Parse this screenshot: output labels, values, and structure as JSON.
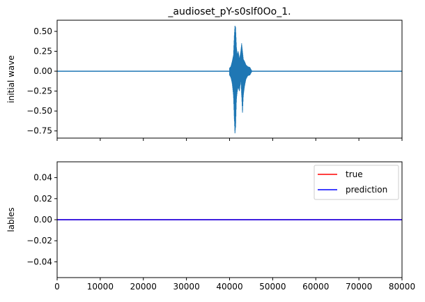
{
  "chart_data": [
    {
      "type": "line",
      "title": "_audioset_pY-s0slf0Oo_1.",
      "xlabel": "",
      "ylabel": "initial wave",
      "xlim": [
        0,
        80000
      ],
      "ylim": [
        -0.84,
        0.64
      ],
      "xticks": [
        0,
        10000,
        20000,
        30000,
        40000,
        50000,
        60000,
        70000,
        80000
      ],
      "xtick_labels_visible": false,
      "yticks": [
        -0.75,
        -0.5,
        -0.25,
        0.0,
        0.25,
        0.5
      ],
      "ytick_labels": [
        "−0.75",
        "−0.50",
        "−0.25",
        "0.00",
        "0.25",
        "0.50"
      ],
      "grid": false,
      "series": [
        {
          "color": "#1f77b4",
          "baseline": 0.0,
          "envelope": [
            [
              40000,
              0.04,
              -0.05
            ],
            [
              40300,
              0.06,
              -0.08
            ],
            [
              40600,
              0.12,
              -0.15
            ],
            [
              40900,
              0.2,
              -0.3
            ],
            [
              41100,
              0.45,
              -0.6
            ],
            [
              41250,
              0.57,
              -0.78
            ],
            [
              41400,
              0.55,
              -0.7
            ],
            [
              41600,
              0.3,
              -0.35
            ],
            [
              41800,
              0.2,
              -0.25
            ],
            [
              42000,
              0.25,
              -0.2
            ],
            [
              42300,
              0.15,
              -0.25
            ],
            [
              42600,
              0.25,
              -0.1
            ],
            [
              42800,
              0.35,
              -0.3
            ],
            [
              43000,
              0.25,
              -0.52
            ],
            [
              43200,
              0.15,
              -0.3
            ],
            [
              43500,
              0.12,
              -0.18
            ],
            [
              43800,
              0.08,
              -0.1
            ],
            [
              44200,
              0.06,
              -0.06
            ],
            [
              44700,
              0.05,
              -0.05
            ],
            [
              45200,
              0.0,
              0.0
            ]
          ]
        }
      ]
    },
    {
      "type": "line",
      "title": "",
      "xlabel": "",
      "ylabel": "lables",
      "xlim": [
        0,
        80000
      ],
      "ylim": [
        -0.055,
        0.055
      ],
      "xticks": [
        0,
        10000,
        20000,
        30000,
        40000,
        50000,
        60000,
        70000,
        80000
      ],
      "xtick_labels": [
        "0",
        "10000",
        "20000",
        "30000",
        "40000",
        "50000",
        "60000",
        "70000",
        "80000"
      ],
      "yticks": [
        -0.04,
        -0.02,
        0.0,
        0.02,
        0.04
      ],
      "ytick_labels": [
        "−0.04",
        "−0.02",
        "0.00",
        "0.02",
        "0.04"
      ],
      "grid": false,
      "legend_position": "top-right",
      "series": [
        {
          "name": "true",
          "color": "#ff0000",
          "x": [
            0,
            80000
          ],
          "y": [
            0,
            0
          ]
        },
        {
          "name": "prediction",
          "color": "#0000ff",
          "x": [
            0,
            80000
          ],
          "y": [
            0,
            0
          ]
        }
      ]
    }
  ]
}
